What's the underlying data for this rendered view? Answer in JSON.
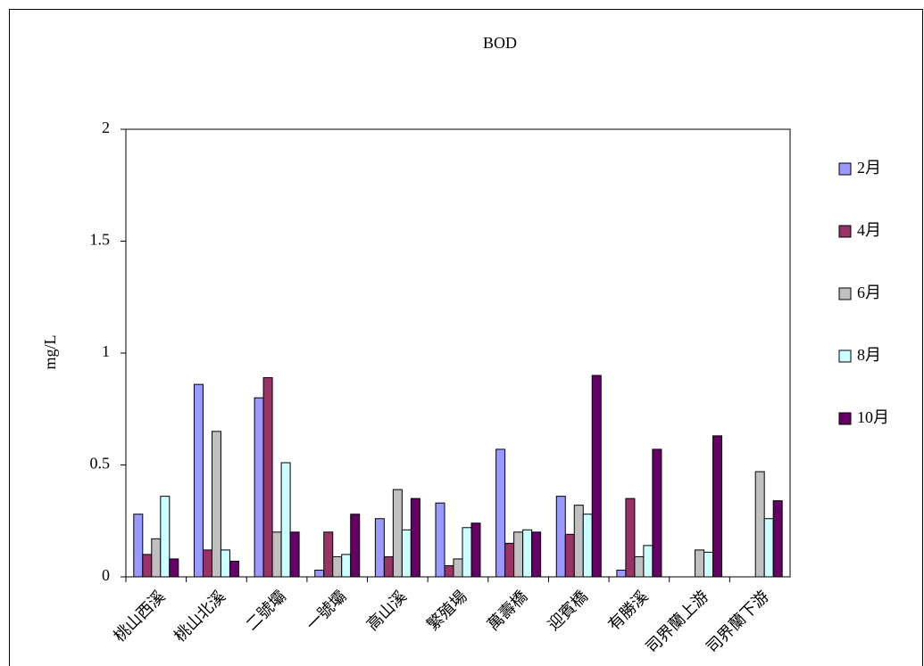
{
  "chart_data": {
    "type": "bar",
    "title": "BOD",
    "y_label": "mg/L",
    "categories": [
      "桃山西溪",
      "桃山北溪",
      "二號壩",
      "一號壩",
      "高山溪",
      "繁殖場",
      "萬壽橋",
      "迎賓橋",
      "有勝溪",
      "司界蘭上游",
      "司界蘭下游"
    ],
    "series": [
      {
        "name": "2月",
        "color": "#9999ff",
        "values": [
          0.28,
          0.86,
          0.8,
          0.03,
          0.26,
          0.33,
          0.57,
          0.36,
          0.03,
          null,
          null
        ]
      },
      {
        "name": "4月",
        "color": "#993366",
        "values": [
          0.1,
          0.12,
          0.89,
          0.2,
          0.09,
          0.05,
          0.15,
          0.19,
          0.35,
          null,
          null
        ]
      },
      {
        "name": "6月",
        "color": "#c0c0c0",
        "values": [
          0.17,
          0.65,
          0.2,
          0.09,
          0.39,
          0.08,
          0.2,
          0.32,
          0.09,
          0.12,
          0.47
        ]
      },
      {
        "name": "8月",
        "color": "#ccffff",
        "values": [
          0.36,
          0.12,
          0.51,
          0.1,
          0.21,
          0.22,
          0.21,
          0.28,
          0.14,
          0.11,
          0.26
        ]
      },
      {
        "name": "10月",
        "color": "#660066",
        "values": [
          0.08,
          0.07,
          0.2,
          0.28,
          0.35,
          0.24,
          0.2,
          0.9,
          0.57,
          0.63,
          0.34
        ]
      }
    ],
    "ylim": [
      0,
      2
    ],
    "yticks": [
      0,
      0.5,
      1,
      1.5,
      2
    ],
    "grid": false,
    "legend": "right"
  }
}
